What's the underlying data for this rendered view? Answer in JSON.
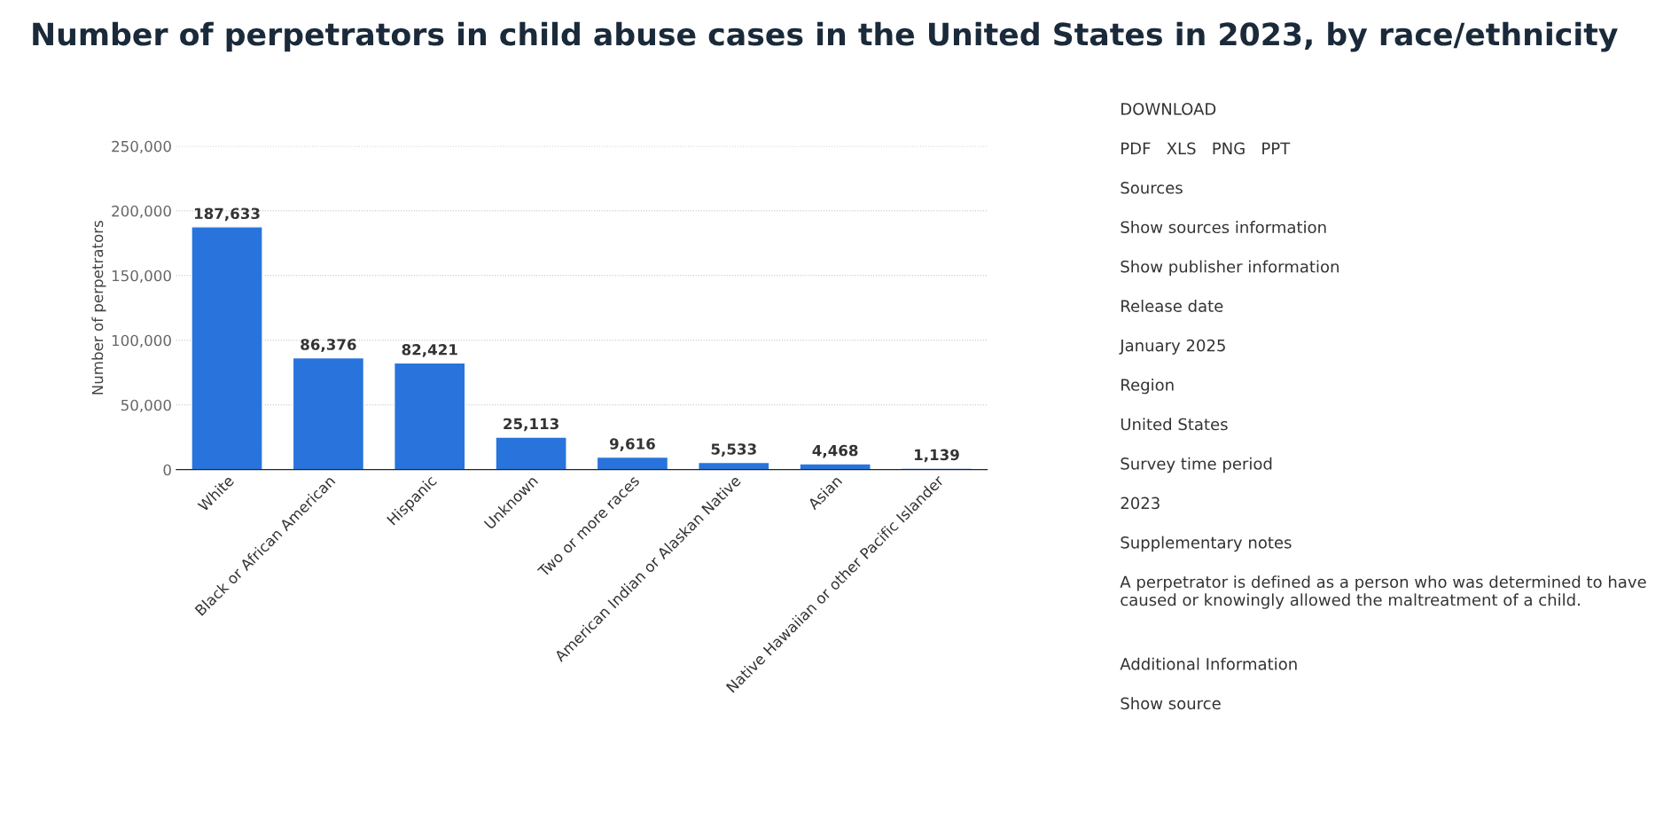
{
  "chart_data": {
    "type": "bar",
    "title": "Number of perpetrators in child abuse cases in the United States in 2023, by race/ethnicity",
    "ylabel": "Number of perpetrators",
    "categories": [
      "White",
      "Black or African American",
      "Hispanic",
      "Unknown",
      "Two or more races",
      "American Indian or Alaskan Native",
      "Asian",
      "Native Hawaiian or other Pacific Islander"
    ],
    "values": [
      187633,
      86376,
      82421,
      25113,
      9616,
      5533,
      4468,
      1139
    ],
    "value_labels": [
      "187,633",
      "86,376",
      "82,421",
      "25,113",
      "9,616",
      "5,533",
      "4,468",
      "1,139"
    ],
    "color": "#2874dc",
    "ylim": [
      0,
      250000
    ],
    "yticks": [
      {
        "value": 0,
        "label": "0"
      },
      {
        "value": 50000,
        "label": "50,000"
      },
      {
        "value": 100000,
        "label": "100,000"
      },
      {
        "value": 150000,
        "label": "150,000"
      },
      {
        "value": 200000,
        "label": "200,000"
      },
      {
        "value": 250000,
        "label": "250,000"
      }
    ],
    "grid": "y",
    "annotations": [
      "DOWNLOAD",
      "PDF   XLS   PNG   PPT",
      "Sources",
      "Show sources information",
      "Show publisher information",
      "Release date",
      "January 2025",
      "Region",
      "United States",
      "Survey time period",
      "2023",
      "Supplementary notes",
      "A perpetrator is defined as a person who was determined to have caused or knowingly allowed the maltreatment of a child.",
      "Additional Information",
      "Show source"
    ]
  }
}
